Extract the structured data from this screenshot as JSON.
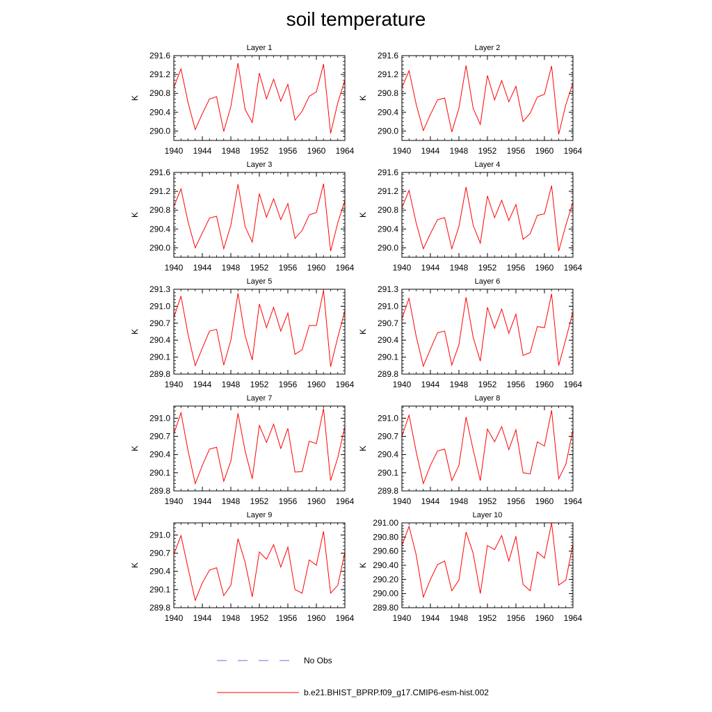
{
  "title": "soil temperature",
  "legend": {
    "placement": "bottom-center",
    "obs_label": "No Obs",
    "obs_color": "#6b6bdc",
    "model_label": "b.e21.BHIST_BPRP.f09_g17.CMIP6-esm-hist.002",
    "model_color": "#ff0000"
  },
  "colors": {
    "line": "#ff0000",
    "axis": "#000000"
  },
  "chart_data": [
    {
      "type": "line",
      "title": "Layer 1",
      "ylabel": "K",
      "xlim": [
        1940,
        1964
      ],
      "ylim": [
        289.8,
        291.6
      ],
      "xticks": [
        "1940",
        "1944",
        "1948",
        "1952",
        "1956",
        "1960",
        "1964"
      ],
      "yticks": [
        "290.0",
        "290.4",
        "290.8",
        "291.2",
        "291.6"
      ],
      "ytick_values": [
        290.0,
        290.4,
        290.8,
        291.2,
        291.6
      ],
      "x": [
        1940,
        1941,
        1942,
        1943,
        1944,
        1945,
        1946,
        1947,
        1948,
        1949,
        1950,
        1951,
        1952,
        1953,
        1954,
        1955,
        1956,
        1957,
        1958,
        1959,
        1960,
        1961,
        1962,
        1963,
        1964
      ],
      "values": [
        290.92,
        291.32,
        290.6,
        290.03,
        290.37,
        290.68,
        290.73,
        289.99,
        290.52,
        291.44,
        290.46,
        290.18,
        291.23,
        290.68,
        291.1,
        290.63,
        290.99,
        290.23,
        290.42,
        290.74,
        290.83,
        291.42,
        289.95,
        290.6,
        291.08
      ]
    },
    {
      "type": "line",
      "title": "Layer 2",
      "ylabel": "K",
      "xlim": [
        1940,
        1964
      ],
      "ylim": [
        289.8,
        291.6
      ],
      "xticks": [
        "1940",
        "1944",
        "1948",
        "1952",
        "1956",
        "1960",
        "1964"
      ],
      "yticks": [
        "290.0",
        "290.4",
        "290.8",
        "291.2",
        "291.6"
      ],
      "ytick_values": [
        290.0,
        290.4,
        290.8,
        291.2,
        291.6
      ],
      "x": [
        1940,
        1941,
        1942,
        1943,
        1944,
        1945,
        1946,
        1947,
        1948,
        1949,
        1950,
        1951,
        1952,
        1953,
        1954,
        1955,
        1956,
        1957,
        1958,
        1959,
        1960,
        1961,
        1962,
        1963,
        1964
      ],
      "values": [
        290.92,
        291.28,
        290.57,
        290.01,
        290.35,
        290.66,
        290.7,
        289.98,
        290.48,
        291.39,
        290.48,
        290.14,
        291.18,
        290.66,
        291.07,
        290.62,
        290.95,
        290.2,
        290.38,
        290.72,
        290.78,
        291.38,
        289.93,
        290.56,
        291.02
      ]
    },
    {
      "type": "line",
      "title": "Layer 3",
      "ylabel": "K",
      "xlim": [
        1940,
        1964
      ],
      "ylim": [
        289.8,
        291.6
      ],
      "xticks": [
        "1940",
        "1944",
        "1948",
        "1952",
        "1956",
        "1960",
        "1964"
      ],
      "yticks": [
        "290.0",
        "290.4",
        "290.8",
        "291.2",
        "291.6"
      ],
      "ytick_values": [
        290.0,
        290.4,
        290.8,
        291.2,
        291.6
      ],
      "x": [
        1940,
        1941,
        1942,
        1943,
        1944,
        1945,
        1946,
        1947,
        1948,
        1949,
        1950,
        1951,
        1952,
        1953,
        1954,
        1955,
        1956,
        1957,
        1958,
        1959,
        1960,
        1961,
        1962,
        1963,
        1964
      ],
      "values": [
        290.88,
        291.25,
        290.55,
        290.0,
        290.32,
        290.63,
        290.67,
        289.98,
        290.48,
        291.35,
        290.45,
        290.12,
        291.15,
        290.65,
        291.04,
        290.6,
        290.94,
        290.2,
        290.37,
        290.7,
        290.75,
        291.36,
        289.93,
        290.53,
        291.0
      ]
    },
    {
      "type": "line",
      "title": "Layer 4",
      "ylabel": "K",
      "xlim": [
        1940,
        1964
      ],
      "ylim": [
        289.8,
        291.6
      ],
      "xticks": [
        "1940",
        "1944",
        "1948",
        "1952",
        "1956",
        "1960",
        "1964"
      ],
      "yticks": [
        "290.0",
        "290.4",
        "290.8",
        "291.2",
        "291.6"
      ],
      "ytick_values": [
        290.0,
        290.4,
        290.8,
        291.2,
        291.6
      ],
      "x": [
        1940,
        1941,
        1942,
        1943,
        1944,
        1945,
        1946,
        1947,
        1948,
        1949,
        1950,
        1951,
        1952,
        1953,
        1954,
        1955,
        1956,
        1957,
        1958,
        1959,
        1960,
        1961,
        1962,
        1963,
        1964
      ],
      "values": [
        290.85,
        291.22,
        290.53,
        289.98,
        290.3,
        290.6,
        290.64,
        289.98,
        290.45,
        291.29,
        290.48,
        290.1,
        291.1,
        290.64,
        291.01,
        290.58,
        290.92,
        290.18,
        290.3,
        290.69,
        290.72,
        291.32,
        289.93,
        290.48,
        290.97
      ]
    },
    {
      "type": "line",
      "title": "Layer 5",
      "ylabel": "K",
      "xlim": [
        1940,
        1964
      ],
      "ylim": [
        289.8,
        291.3
      ],
      "xticks": [
        "1940",
        "1944",
        "1948",
        "1952",
        "1956",
        "1960",
        "1964"
      ],
      "yticks": [
        "289.8",
        "290.1",
        "290.4",
        "290.7",
        "291.0",
        "291.3"
      ],
      "ytick_values": [
        289.8,
        290.1,
        290.4,
        290.7,
        291.0,
        291.3
      ],
      "x": [
        1940,
        1941,
        1942,
        1943,
        1944,
        1945,
        1946,
        1947,
        1948,
        1949,
        1950,
        1951,
        1952,
        1953,
        1954,
        1955,
        1956,
        1957,
        1958,
        1959,
        1960,
        1961,
        1962,
        1963,
        1964
      ],
      "values": [
        290.8,
        291.18,
        290.5,
        289.95,
        290.26,
        290.56,
        290.59,
        289.96,
        290.4,
        291.23,
        290.48,
        290.05,
        291.04,
        290.62,
        290.98,
        290.56,
        290.88,
        290.15,
        290.23,
        290.66,
        290.66,
        291.28,
        289.93,
        290.45,
        290.92
      ]
    },
    {
      "type": "line",
      "title": "Layer 6",
      "ylabel": "K",
      "xlim": [
        1940,
        1964
      ],
      "ylim": [
        289.8,
        291.3
      ],
      "xticks": [
        "1940",
        "1944",
        "1948",
        "1952",
        "1956",
        "1960",
        "1964"
      ],
      "yticks": [
        "289.8",
        "290.1",
        "290.4",
        "290.7",
        "291.0",
        "291.3"
      ],
      "ytick_values": [
        289.8,
        290.1,
        290.4,
        290.7,
        291.0,
        291.3
      ],
      "x": [
        1940,
        1941,
        1942,
        1943,
        1944,
        1945,
        1946,
        1947,
        1948,
        1949,
        1950,
        1951,
        1952,
        1953,
        1954,
        1955,
        1956,
        1957,
        1958,
        1959,
        1960,
        1961,
        1962,
        1963,
        1964
      ],
      "values": [
        290.78,
        291.14,
        290.47,
        289.94,
        290.24,
        290.53,
        290.56,
        289.96,
        290.32,
        291.16,
        290.45,
        290.03,
        290.98,
        290.61,
        290.95,
        290.52,
        290.86,
        290.13,
        290.18,
        290.64,
        290.62,
        291.22,
        289.95,
        290.42,
        290.9
      ]
    },
    {
      "type": "line",
      "title": "Layer 7",
      "ylabel": "K",
      "xlim": [
        1940,
        1964
      ],
      "ylim": [
        289.8,
        291.2
      ],
      "xticks": [
        "1940",
        "1944",
        "1948",
        "1952",
        "1956",
        "1960",
        "1964"
      ],
      "yticks": [
        "289.8",
        "290.1",
        "290.4",
        "290.7",
        "291.0"
      ],
      "ytick_values": [
        289.8,
        290.1,
        290.4,
        290.7,
        291.0
      ],
      "x": [
        1940,
        1941,
        1942,
        1943,
        1944,
        1945,
        1946,
        1947,
        1948,
        1949,
        1950,
        1951,
        1952,
        1953,
        1954,
        1955,
        1956,
        1957,
        1958,
        1959,
        1960,
        1961,
        1962,
        1963,
        1964
      ],
      "values": [
        290.74,
        291.09,
        290.46,
        289.92,
        290.22,
        290.49,
        290.52,
        289.96,
        290.29,
        291.08,
        290.46,
        290.0,
        290.88,
        290.6,
        290.9,
        290.5,
        290.83,
        290.11,
        290.12,
        290.62,
        290.58,
        291.16,
        289.97,
        290.35,
        290.86
      ]
    },
    {
      "type": "line",
      "title": "Layer 8",
      "ylabel": "K",
      "xlim": [
        1940,
        1964
      ],
      "ylim": [
        289.8,
        291.2
      ],
      "xticks": [
        "1940",
        "1944",
        "1948",
        "1952",
        "1956",
        "1960",
        "1964"
      ],
      "yticks": [
        "289.8",
        "290.1",
        "290.4",
        "290.7",
        "291.0"
      ],
      "ytick_values": [
        289.8,
        290.1,
        290.4,
        290.7,
        291.0
      ],
      "x": [
        1940,
        1941,
        1942,
        1943,
        1944,
        1945,
        1946,
        1947,
        1948,
        1949,
        1950,
        1951,
        1952,
        1953,
        1954,
        1955,
        1956,
        1957,
        1958,
        1959,
        1960,
        1961,
        1962,
        1963,
        1964
      ],
      "values": [
        290.7,
        291.05,
        290.45,
        289.92,
        290.22,
        290.46,
        290.49,
        289.97,
        290.22,
        291.02,
        290.48,
        289.97,
        290.82,
        290.61,
        290.86,
        290.48,
        290.81,
        290.1,
        290.08,
        290.61,
        290.54,
        291.13,
        290.0,
        290.24,
        290.81
      ]
    },
    {
      "type": "line",
      "title": "Layer 9",
      "ylabel": "K",
      "xlim": [
        1940,
        1964
      ],
      "ylim": [
        289.8,
        291.2
      ],
      "xticks": [
        "1940",
        "1944",
        "1948",
        "1952",
        "1956",
        "1960",
        "1964"
      ],
      "yticks": [
        "289.8",
        "290.1",
        "290.4",
        "290.7",
        "291.0"
      ],
      "ytick_values": [
        289.8,
        290.1,
        290.4,
        290.7,
        291.0
      ],
      "x": [
        1940,
        1941,
        1942,
        1943,
        1944,
        1945,
        1946,
        1947,
        1948,
        1949,
        1950,
        1951,
        1952,
        1953,
        1954,
        1955,
        1956,
        1957,
        1958,
        1959,
        1960,
        1961,
        1962,
        1963,
        1964
      ],
      "values": [
        290.68,
        290.99,
        290.45,
        289.92,
        290.21,
        290.42,
        290.46,
        290.0,
        290.17,
        290.94,
        290.55,
        289.98,
        290.72,
        290.6,
        290.84,
        290.47,
        290.8,
        290.1,
        290.04,
        290.59,
        290.5,
        291.06,
        290.04,
        290.17,
        290.72
      ]
    },
    {
      "type": "line",
      "title": "Layer 10",
      "ylabel": "K",
      "xlim": [
        1940,
        1964
      ],
      "ylim": [
        289.8,
        291.0
      ],
      "xticks": [
        "1940",
        "1944",
        "1948",
        "1952",
        "1956",
        "1960",
        "1964"
      ],
      "yticks": [
        "289.80",
        "290.00",
        "290.20",
        "290.40",
        "290.60",
        "290.80",
        "291.00"
      ],
      "ytick_values": [
        289.8,
        290.0,
        290.2,
        290.4,
        290.6,
        290.8,
        291.0
      ],
      "x": [
        1940,
        1941,
        1942,
        1943,
        1944,
        1945,
        1946,
        1947,
        1948,
        1949,
        1950,
        1951,
        1952,
        1953,
        1954,
        1955,
        1956,
        1957,
        1958,
        1959,
        1960,
        1961,
        1962,
        1963,
        1964
      ],
      "values": [
        290.68,
        290.95,
        290.55,
        289.95,
        290.2,
        290.41,
        290.46,
        290.04,
        290.19,
        290.87,
        290.57,
        290.0,
        290.68,
        290.62,
        290.82,
        290.46,
        290.81,
        290.13,
        290.04,
        290.59,
        290.5,
        291.0,
        290.12,
        290.19,
        290.7
      ]
    }
  ]
}
